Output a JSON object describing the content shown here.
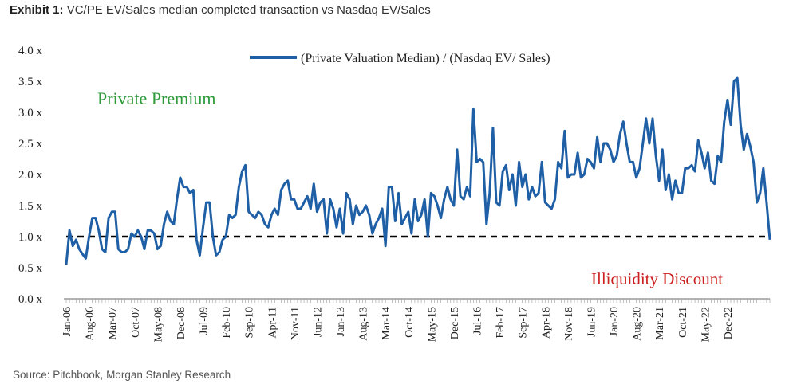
{
  "header": {
    "exhibit_label": "Exhibit 1:",
    "title": "VC/PE EV/Sales median completed transaction vs Nasdaq EV/Sales"
  },
  "footer": {
    "source": "Source: Pitchbook, Morgan Stanley Research"
  },
  "chart_data": {
    "type": "line",
    "title": "",
    "xlabel": "",
    "ylabel": "",
    "ylim": [
      0,
      4
    ],
    "y_ticks": [
      {
        "value": 0.0,
        "label": "0.0 x"
      },
      {
        "value": 0.5,
        "label": "0.5 x"
      },
      {
        "value": 1.0,
        "label": "1.0 x"
      },
      {
        "value": 1.5,
        "label": "1.5 x"
      },
      {
        "value": 2.0,
        "label": "2.0 x"
      },
      {
        "value": 2.5,
        "label": "2.5 x"
      },
      {
        "value": 3.0,
        "label": "3.0 x"
      },
      {
        "value": 3.5,
        "label": "3.5 x"
      },
      {
        "value": 4.0,
        "label": "4.0 x"
      }
    ],
    "x_tick_labels": [
      "Jan-06",
      "Aug-06",
      "Mar-07",
      "Oct-07",
      "May-08",
      "Dec-08",
      "Jul-09",
      "Feb-10",
      "Sep-10",
      "Apr-11",
      "Nov-11",
      "Jun-12",
      "Jan-13",
      "Aug-13",
      "Mar-14",
      "Oct-14",
      "May-15",
      "Dec-15",
      "Jul-16",
      "Feb-17",
      "Sep-17",
      "Apr-18",
      "Nov-18",
      "Jun-19",
      "Jan-20",
      "Aug-20",
      "Mar-21",
      "Oct-21",
      "May-22",
      "Dec-22"
    ],
    "x_start": "Jan-06",
    "x_end": "Mar-23",
    "legend": {
      "label": "(Private Valuation Median) / (Nasdaq EV/ Sales)",
      "position": "top-center"
    },
    "annotations": [
      {
        "text": "Private Premium",
        "color": "#2e9a3a"
      },
      {
        "text": "Illiquidity Discount",
        "color": "#cc1f1f"
      }
    ],
    "reference_line": {
      "y": 1.0,
      "style": "dashed",
      "color": "#000000"
    },
    "series": [
      {
        "name": "(Private Valuation Median) / (Nasdaq EV/ Sales)",
        "color": "#1f5fa6",
        "values": [
          0.55,
          1.1,
          0.85,
          0.95,
          0.8,
          0.72,
          0.65,
          1.0,
          1.3,
          1.3,
          1.1,
          0.8,
          0.75,
          1.3,
          1.4,
          1.4,
          0.8,
          0.75,
          0.75,
          0.8,
          1.05,
          1.0,
          1.1,
          1.0,
          0.8,
          1.1,
          1.1,
          1.05,
          0.8,
          0.85,
          1.2,
          1.4,
          1.25,
          1.2,
          1.6,
          1.95,
          1.8,
          1.8,
          1.7,
          1.75,
          0.95,
          0.7,
          1.15,
          1.55,
          1.55,
          1.0,
          0.7,
          0.75,
          0.95,
          1.0,
          1.35,
          1.3,
          1.35,
          1.8,
          2.05,
          2.15,
          1.4,
          1.35,
          1.3,
          1.4,
          1.35,
          1.2,
          1.15,
          1.35,
          1.45,
          1.35,
          1.75,
          1.85,
          1.9,
          1.6,
          1.6,
          1.45,
          1.45,
          1.55,
          1.65,
          1.45,
          1.85,
          1.4,
          1.55,
          1.6,
          1.05,
          1.6,
          1.45,
          1.15,
          1.45,
          1.05,
          1.7,
          1.6,
          1.2,
          1.5,
          1.35,
          1.4,
          1.5,
          1.35,
          1.05,
          1.2,
          1.3,
          1.45,
          0.85,
          1.8,
          1.8,
          1.25,
          1.7,
          1.2,
          1.3,
          1.4,
          1.05,
          1.6,
          1.25,
          1.35,
          1.6,
          1.0,
          1.7,
          1.65,
          1.5,
          1.3,
          1.6,
          1.8,
          1.6,
          1.5,
          2.4,
          1.65,
          1.6,
          1.8,
          1.65,
          3.05,
          2.2,
          2.25,
          2.2,
          1.2,
          1.7,
          2.75,
          1.55,
          1.5,
          2.05,
          2.15,
          1.75,
          2.0,
          1.5,
          2.2,
          1.8,
          2.0,
          1.6,
          1.8,
          1.65,
          1.7,
          2.2,
          1.55,
          1.5,
          1.45,
          1.6,
          2.2,
          2.1,
          2.7,
          1.95,
          2.0,
          2.0,
          2.35,
          1.95,
          2.0,
          2.25,
          2.2,
          2.1,
          2.6,
          2.2,
          2.5,
          2.5,
          2.4,
          2.2,
          2.3,
          2.65,
          2.85,
          2.5,
          2.2,
          2.2,
          1.95,
          2.1,
          2.5,
          2.9,
          2.5,
          2.9,
          2.3,
          1.9,
          2.4,
          1.75,
          2.0,
          1.6,
          1.9,
          1.7,
          1.7,
          2.1,
          2.1,
          2.15,
          2.05,
          2.55,
          2.35,
          2.1,
          2.35,
          1.9,
          1.85,
          2.3,
          2.2,
          2.85,
          3.2,
          2.8,
          3.5,
          3.55,
          2.8,
          2.4,
          2.65,
          2.45,
          2.2,
          1.55,
          1.7,
          2.1,
          1.55,
          0.95
        ]
      }
    ]
  }
}
